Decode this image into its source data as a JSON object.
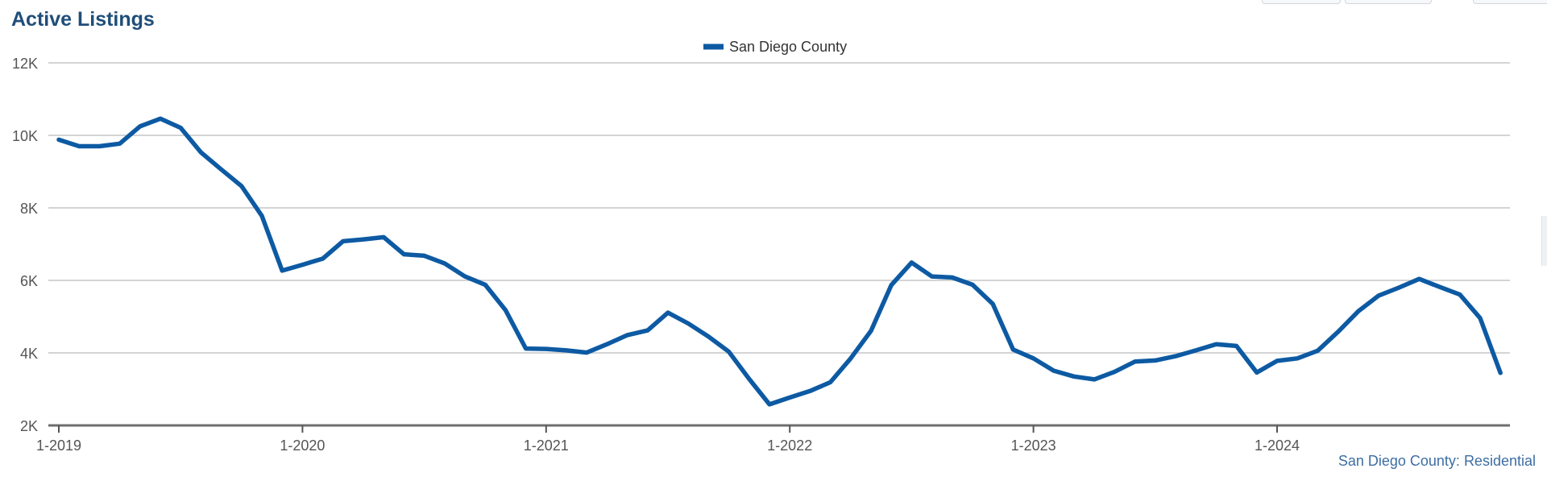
{
  "title": "Active Listings",
  "footnote": "San Diego County: Residential",
  "colors": {
    "series": "#0d5aa3",
    "grid": "#c6c6c6",
    "axis": "#555555",
    "title": "#1f4e79",
    "footnote": "#3d6ea3"
  },
  "chart_data": {
    "type": "line",
    "title": "Active Listings",
    "xlabel": "",
    "ylabel": "",
    "ylim": [
      2000,
      12000
    ],
    "yticks": [
      2000,
      4000,
      6000,
      8000,
      10000,
      12000
    ],
    "ytick_labels": [
      "2K",
      "4K",
      "6K",
      "8K",
      "10K",
      "12K"
    ],
    "xticks": [
      "1-2019",
      "1-2020",
      "1-2021",
      "1-2022",
      "1-2023",
      "1-2024"
    ],
    "grid": true,
    "legend": "top-center",
    "x": [
      "1-2019",
      "2-2019",
      "3-2019",
      "4-2019",
      "5-2019",
      "6-2019",
      "7-2019",
      "8-2019",
      "9-2019",
      "10-2019",
      "11-2019",
      "12-2019",
      "1-2020",
      "2-2020",
      "3-2020",
      "4-2020",
      "5-2020",
      "6-2020",
      "7-2020",
      "8-2020",
      "9-2020",
      "10-2020",
      "11-2020",
      "12-2020",
      "1-2021",
      "2-2021",
      "3-2021",
      "4-2021",
      "5-2021",
      "6-2021",
      "7-2021",
      "8-2021",
      "9-2021",
      "10-2021",
      "11-2021",
      "12-2021",
      "1-2022",
      "2-2022",
      "3-2022",
      "4-2022",
      "5-2022",
      "6-2022",
      "7-2022",
      "8-2022",
      "9-2022",
      "10-2022",
      "11-2022",
      "12-2022",
      "1-2023",
      "2-2023",
      "3-2023",
      "4-2023",
      "5-2023",
      "6-2023",
      "7-2023",
      "8-2023",
      "9-2023",
      "10-2023",
      "11-2023",
      "12-2023",
      "1-2024",
      "2-2024",
      "3-2024",
      "4-2024",
      "5-2024",
      "6-2024",
      "7-2024",
      "8-2024",
      "9-2024",
      "10-2024",
      "11-2024",
      "12-2024"
    ],
    "series": [
      {
        "name": "San Diego County",
        "values": [
          9880,
          9700,
          9700,
          9770,
          10250,
          10460,
          10210,
          9530,
          9060,
          8600,
          7780,
          6270,
          6430,
          6600,
          7080,
          7130,
          7190,
          6720,
          6680,
          6470,
          6110,
          5880,
          5180,
          4120,
          4110,
          4070,
          4010,
          4240,
          4490,
          4620,
          5110,
          4810,
          4450,
          4030,
          3280,
          2580,
          2770,
          2950,
          3190,
          3850,
          4610,
          5870,
          6490,
          6110,
          6080,
          5880,
          5350,
          4090,
          3850,
          3510,
          3350,
          3270,
          3480,
          3760,
          3790,
          3910,
          4070,
          4240,
          4190,
          3460,
          3780,
          3850,
          4060,
          4580,
          5150,
          5580,
          5800,
          6040,
          5820,
          5610,
          4960,
          3450
        ]
      }
    ]
  }
}
